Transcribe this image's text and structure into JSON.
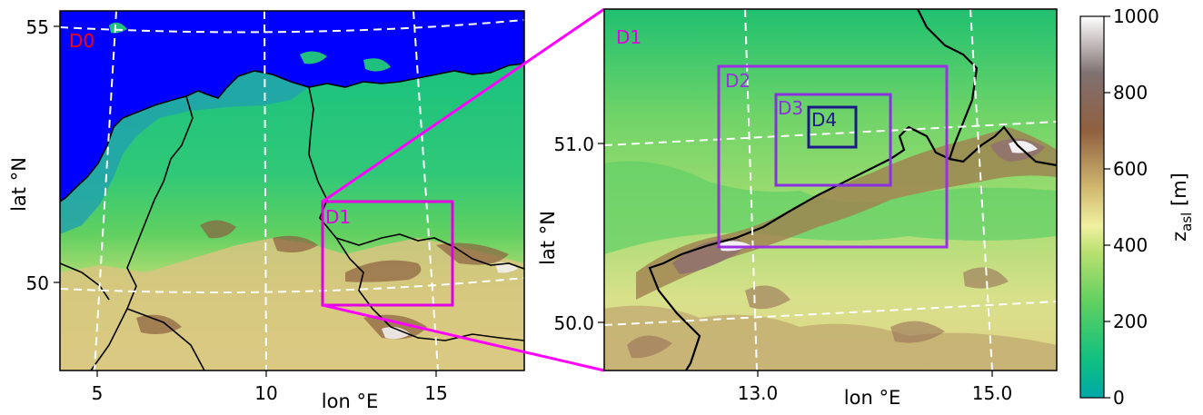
{
  "left_panel": {
    "xlabel": "lon °E",
    "ylabel": "lat °N",
    "xticks": [
      "5",
      "10",
      "15"
    ],
    "yticks": [
      "55",
      "50"
    ],
    "domain_labels": [
      {
        "text": "D0",
        "color": "#ff0000"
      },
      {
        "text": "D1",
        "color": "#e000e0"
      }
    ]
  },
  "right_panel": {
    "xlabel": "lon °E",
    "ylabel": "lat °N",
    "xticks": [
      "13.0",
      "15.0"
    ],
    "yticks": [
      "51.0",
      "50.0"
    ],
    "domain_labels": [
      {
        "text": "D1",
        "color": "#e000e0"
      },
      {
        "text": "D2",
        "color": "#9a30e0"
      },
      {
        "text": "D3",
        "color": "#8a30e0"
      },
      {
        "text": "D4",
        "color": "#1a1a8a"
      }
    ]
  },
  "colorbar": {
    "label_main": "z",
    "label_sub": "asl",
    "label_unit": " [m]",
    "ticks": [
      "1000",
      "800",
      "600",
      "400",
      "200",
      "0"
    ],
    "range": [
      0,
      1000
    ],
    "colors": [
      "#00a8a8",
      "#10c080",
      "#60d060",
      "#b8e070",
      "#f0f0a0",
      "#d0b870",
      "#906040",
      "#807070",
      "#ffffff"
    ]
  },
  "colors": {
    "sea": "#0000ff",
    "border": "#000000",
    "grid": "#ffffff",
    "zoom_line": "#ff00ff"
  }
}
